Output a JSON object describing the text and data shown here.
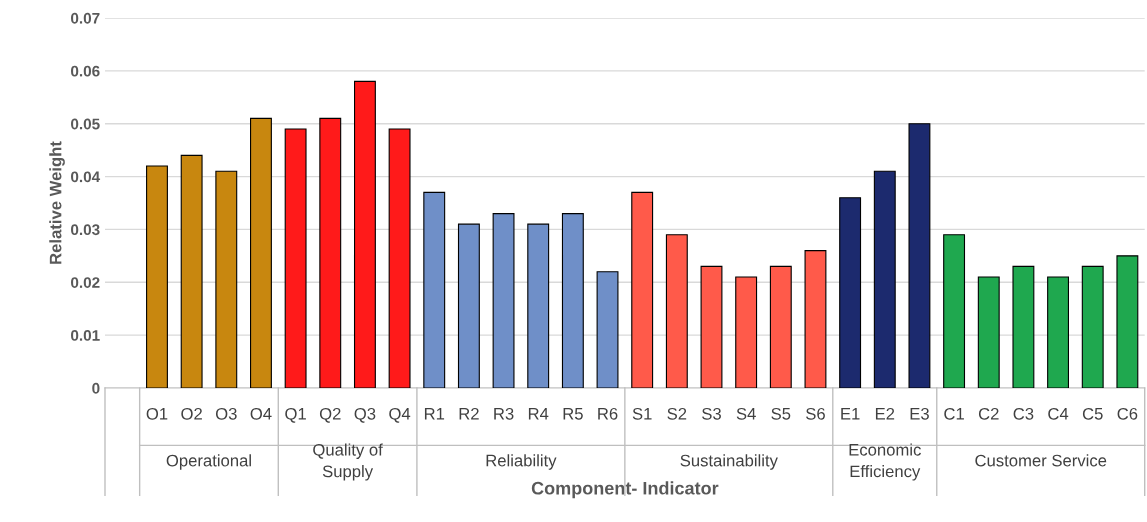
{
  "chart_data": {
    "type": "bar",
    "xlabel": "Component- Indicator",
    "ylabel": "Relative Weight",
    "categories": [
      null,
      "O1",
      "O2",
      "O3",
      "O4",
      "Q1",
      "Q2",
      "Q3",
      "Q4",
      "R1",
      "R2",
      "R3",
      "R4",
      "R5",
      "R6",
      "S1",
      "S2",
      "S3",
      "S4",
      "S5",
      "S6",
      "E1",
      "E2",
      "E3",
      "C1",
      "C2",
      "C3",
      "C4",
      "C5",
      "C6"
    ],
    "values": [
      null,
      0.042,
      0.044,
      0.041,
      0.051,
      0.049,
      0.051,
      0.058,
      0.049,
      0.037,
      0.031,
      0.033,
      0.031,
      0.033,
      0.022,
      0.037,
      0.029,
      0.023,
      0.021,
      0.023,
      0.026,
      0.036,
      0.041,
      0.05,
      0.029,
      0.021,
      0.023,
      0.021,
      0.023,
      0.025
    ],
    "colors": [
      null,
      "#c8870f",
      "#c8870f",
      "#c8870f",
      "#c8870f",
      "#ff1a1a",
      "#ff1a1a",
      "#ff1a1a",
      "#ff1a1a",
      "#6f8fc8",
      "#6f8fc8",
      "#6f8fc8",
      "#6f8fc8",
      "#6f8fc8",
      "#6f8fc8",
      "#ff5a4a",
      "#ff5a4a",
      "#ff5a4a",
      "#ff5a4a",
      "#ff5a4a",
      "#ff5a4a",
      "#1c2a6e",
      "#1c2a6e",
      "#1c2a6e",
      "#1fa84f",
      "#1fa84f",
      "#1fa84f",
      "#1fa84f",
      "#1fa84f",
      "#1fa84f"
    ],
    "annotations": [
      "Operational",
      "Quality of\nSupply",
      "Reliability",
      "Sustainability",
      "Economic\nEfficiency",
      "Customer Service"
    ],
    "ylim": [
      0,
      0.07
    ],
    "yticks": [
      0,
      0.01,
      0.02,
      0.03,
      0.04,
      0.05,
      0.06,
      0.07
    ],
    "grid": "y",
    "legend": false
  }
}
